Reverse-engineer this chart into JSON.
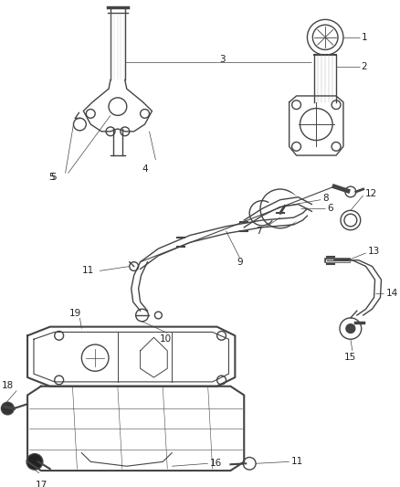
{
  "bg_color": "#ffffff",
  "fig_width": 4.38,
  "fig_height": 5.33,
  "dpi": 100,
  "line_color": "#444444",
  "label_color": "#222222",
  "label_fontsize": 7.5,
  "leader_lw": 0.5,
  "parts_lw": 1.0
}
